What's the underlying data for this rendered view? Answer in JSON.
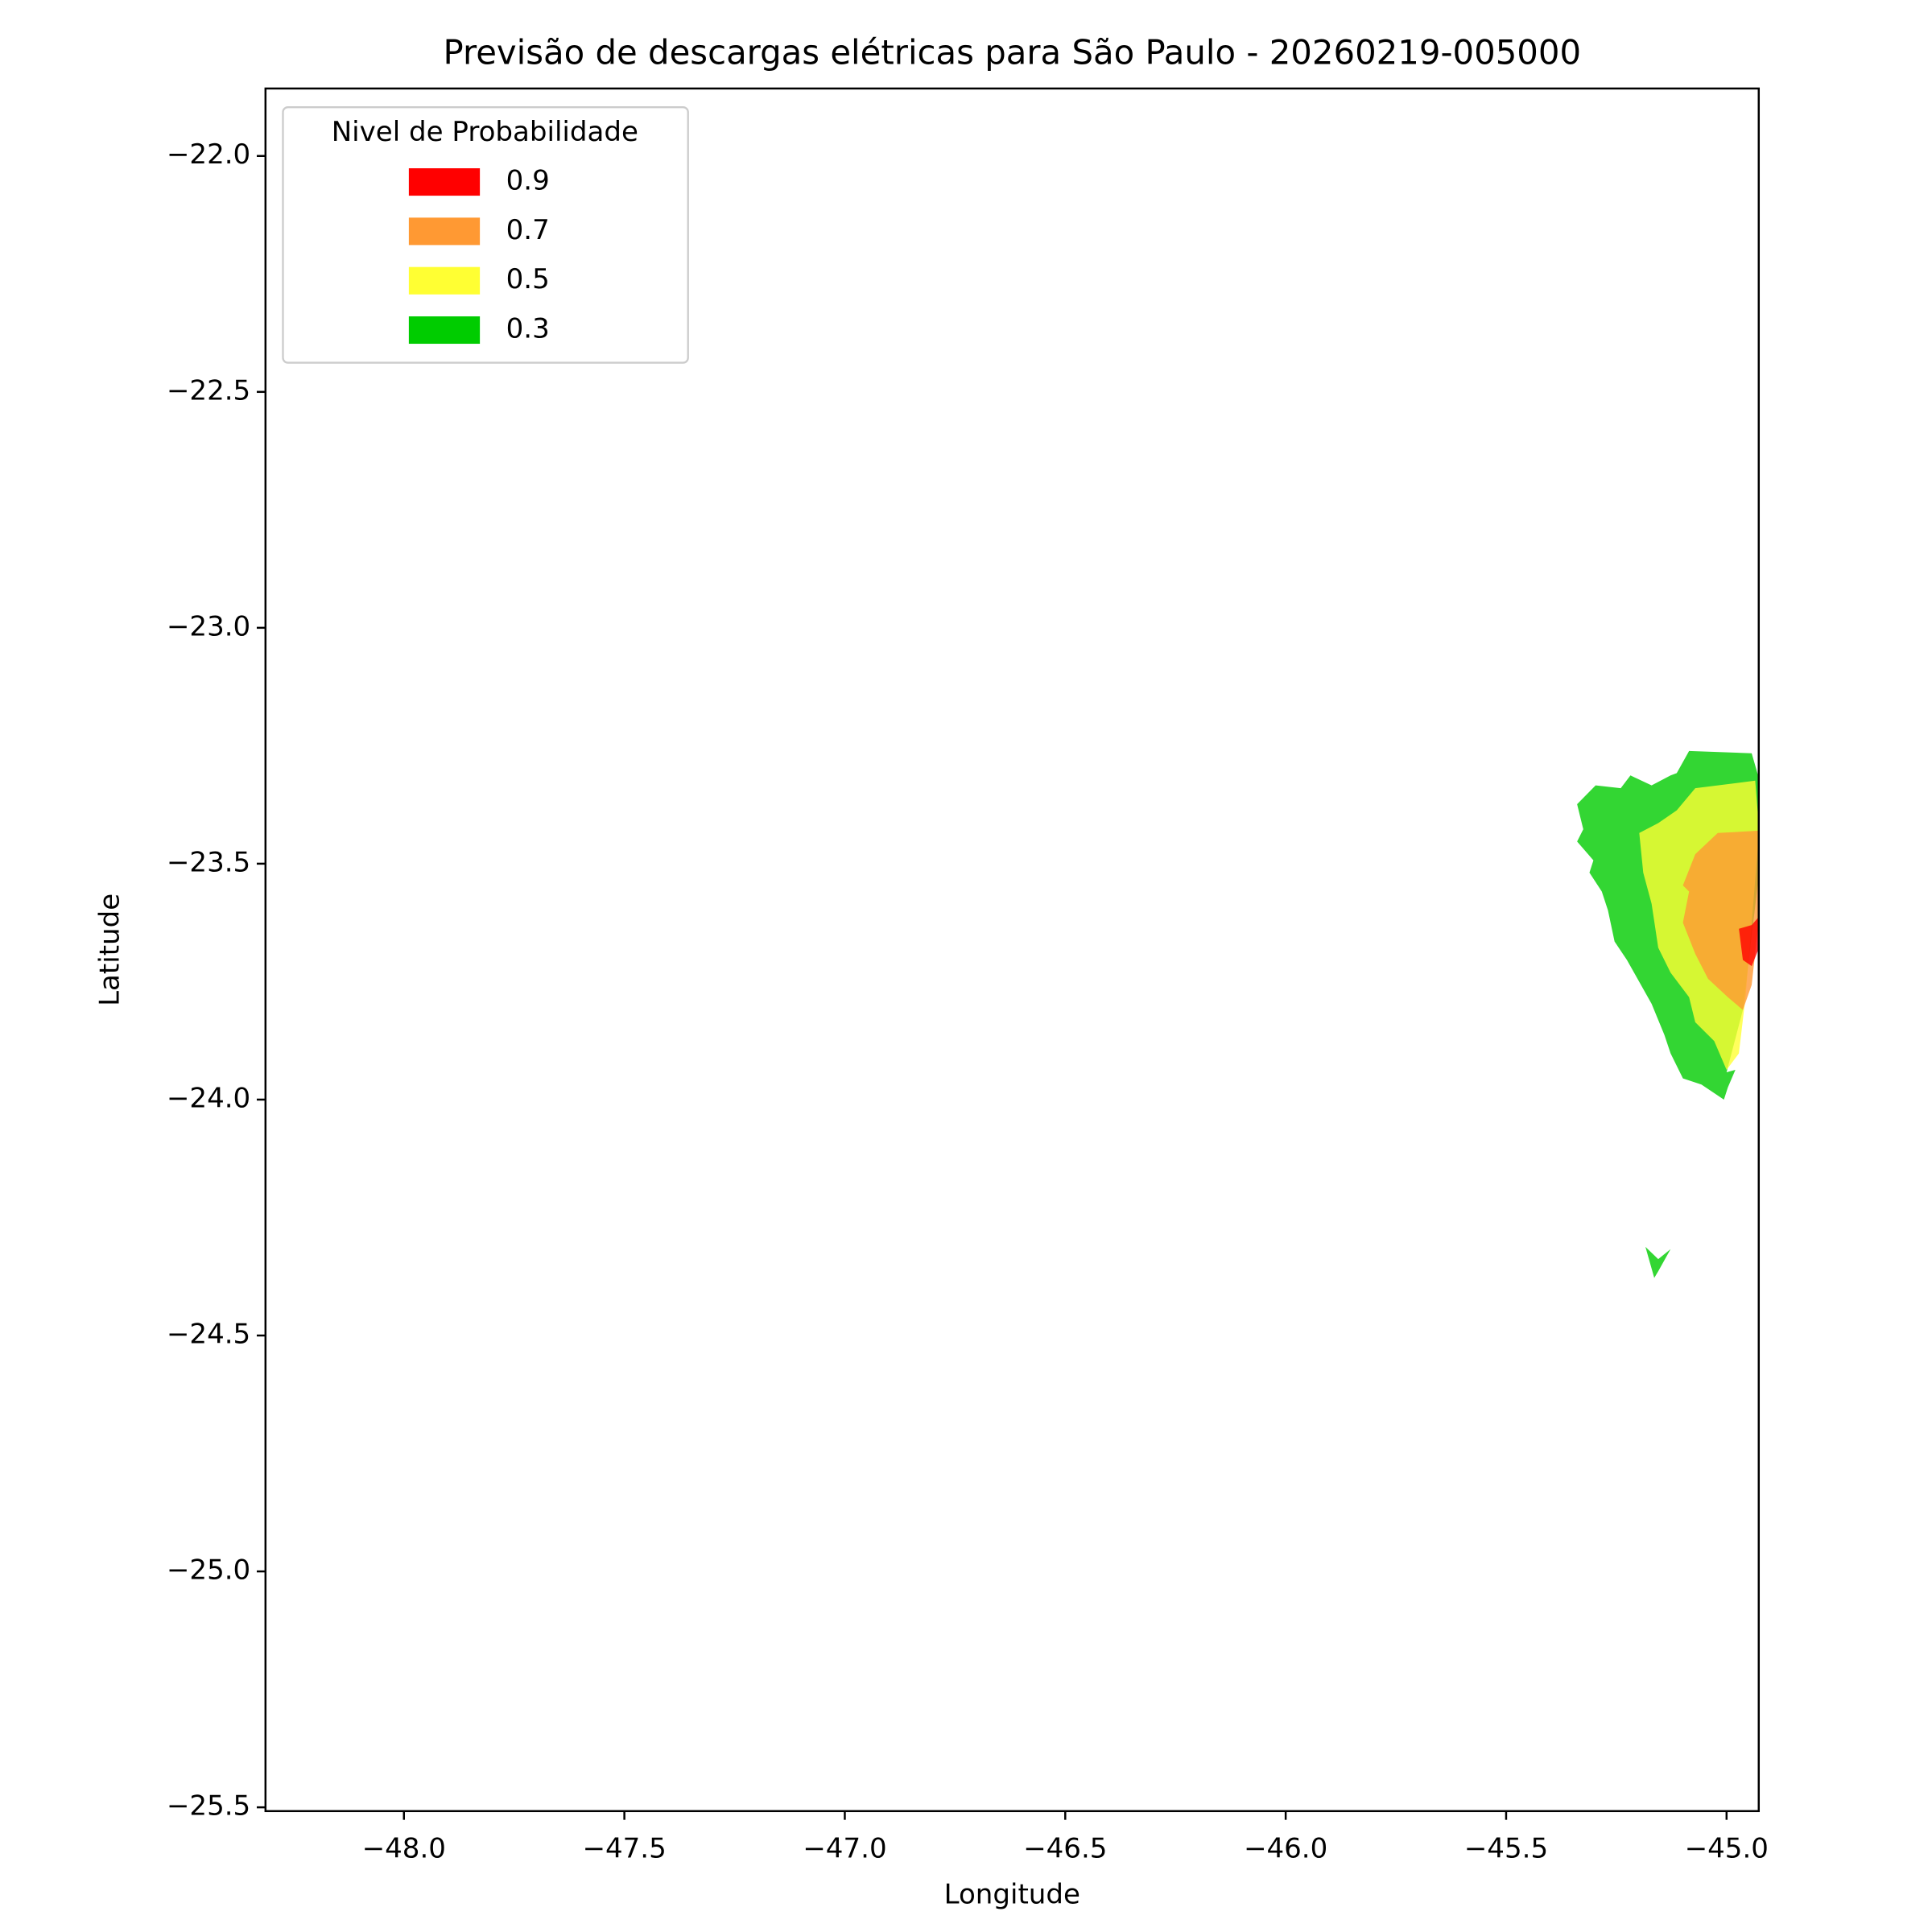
{
  "chart_data": {
    "type": "contour",
    "title": "Previsão de descargas elétricas para São Paulo - 20260219-005000",
    "x_label": "Longitude",
    "y_label": "Latitude",
    "legend_title": "Nivel de Probabilidade",
    "legend_position": "upper left",
    "alpha": 0.8,
    "xlim": [
      -48.314,
      -44.927
    ],
    "ylim": [
      -25.508,
      -21.857
    ],
    "xticks": [
      {
        "value": -48.0,
        "label": "−48.0"
      },
      {
        "value": -47.5,
        "label": "−47.5"
      },
      {
        "value": -47.0,
        "label": "−47.0"
      },
      {
        "value": -46.5,
        "label": "−46.5"
      },
      {
        "value": -46.0,
        "label": "−46.0"
      },
      {
        "value": -45.5,
        "label": "−45.5"
      },
      {
        "value": -45.0,
        "label": "−45.0"
      }
    ],
    "yticks": [
      {
        "value": -22.0,
        "label": "−22.0"
      },
      {
        "value": -22.5,
        "label": "−22.5"
      },
      {
        "value": -23.0,
        "label": "−23.0"
      },
      {
        "value": -23.5,
        "label": "−23.5"
      },
      {
        "value": -24.0,
        "label": "−24.0"
      },
      {
        "value": -24.5,
        "label": "−24.5"
      },
      {
        "value": -25.0,
        "label": "−25.0"
      },
      {
        "value": -25.5,
        "label": "−25.5"
      }
    ],
    "series": [
      {
        "name": "0.9",
        "color": "#ff0000",
        "polygons": [
          {
            "x": [
              -44.972,
              -44.943,
              -44.926,
              -44.926,
              -44.943,
              -44.963
            ],
            "y": [
              -23.638,
              -23.63,
              -23.612,
              -23.678,
              -23.717,
              -23.704
            ]
          }
        ]
      },
      {
        "name": "0.7",
        "color": "#ff9933",
        "polygons": [
          {
            "x": [
              -45.071,
              -45.02,
              -44.926,
              -44.926,
              -44.943,
              -44.963,
              -44.997,
              -45.042,
              -45.071,
              -45.099,
              -45.085,
              -45.099
            ],
            "y": [
              -23.48,
              -23.435,
              -23.43,
              -23.612,
              -23.757,
              -23.81,
              -23.783,
              -23.744,
              -23.691,
              -23.625,
              -23.559,
              -23.546
            ]
          }
        ]
      },
      {
        "name": "0.5",
        "color": "#ffff33",
        "polygons": [
          {
            "x": [
              -45.113,
              -45.071,
              -44.935,
              -44.926,
              -44.943,
              -44.957,
              -44.972,
              -45.0,
              -45.028,
              -45.071,
              -45.085,
              -45.127,
              -45.155,
              -45.17,
              -45.189,
              -45.198,
              -45.155
            ],
            "y": [
              -23.387,
              -23.34,
              -23.324,
              -23.43,
              -23.625,
              -23.783,
              -23.902,
              -23.937,
              -23.876,
              -23.836,
              -23.783,
              -23.731,
              -23.678,
              -23.585,
              -23.519,
              -23.435,
              -23.414
            ]
          }
        ]
      },
      {
        "name": "0.3",
        "color": "#00cc00",
        "polygons": [
          {
            "x": [
              -45.113,
              -45.085,
              -44.943,
              -44.926,
              -44.926,
              -44.963,
              -45.0,
              -44.98,
              -44.997,
              -45.006,
              -45.057,
              -45.099,
              -45.127,
              -45.141,
              -45.17,
              -45.226,
              -45.254,
              -45.269,
              -45.283,
              -45.311,
              -45.302,
              -45.339,
              -45.325,
              -45.339,
              -45.297,
              -45.24,
              -45.218,
              -45.17,
              -45.127
            ],
            "y": [
              -23.308,
              -23.261,
              -23.266,
              -23.321,
              -23.519,
              -23.81,
              -23.942,
              -23.937,
              -23.974,
              -24.0,
              -23.968,
              -23.955,
              -23.902,
              -23.863,
              -23.797,
              -23.704,
              -23.665,
              -23.599,
              -23.559,
              -23.519,
              -23.493,
              -23.453,
              -23.427,
              -23.374,
              -23.334,
              -23.34,
              -23.313,
              -23.334,
              -23.313
            ]
          },
          {
            "x": [
              -45.184,
              -45.155,
              -45.127,
              -45.155,
              -45.164
            ],
            "y": [
              -24.312,
              -24.338,
              -24.317,
              -24.364,
              -24.378
            ]
          }
        ]
      }
    ]
  }
}
